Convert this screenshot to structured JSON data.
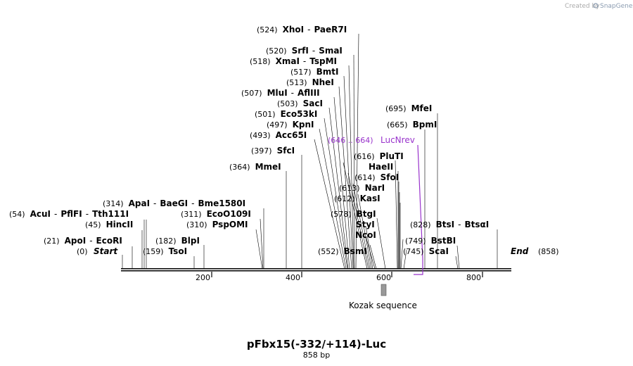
{
  "watermark": "Created by",
  "brand": "SnapGene",
  "title": "pFbx15(-332/+114)-Luc",
  "subtitle": "858 bp",
  "start_label": "(0)",
  "start_text": "Start",
  "end_text": "End",
  "end_label": "(858)",
  "ticks": [
    "200",
    "400",
    "600",
    "800"
  ],
  "feature": {
    "label": "Kozak sequence"
  },
  "primer": {
    "pos": "(646 .. 664)",
    "name": "LucNrev",
    "color": "#9933cc"
  },
  "sites": [
    {
      "pos": "(524)",
      "names": [
        "XhoI",
        "PaeR7I"
      ]
    },
    {
      "pos": "(520)",
      "names": [
        "SrfI",
        "SmaI"
      ]
    },
    {
      "pos": "(518)",
      "names": [
        "XmaI",
        "TspMI"
      ]
    },
    {
      "pos": "(517)",
      "names": [
        "BmtI"
      ]
    },
    {
      "pos": "(513)",
      "names": [
        "NheI"
      ]
    },
    {
      "pos": "(507)",
      "names": [
        "MluI",
        "AflIII"
      ]
    },
    {
      "pos": "(503)",
      "names": [
        "SacI"
      ]
    },
    {
      "pos": "(501)",
      "names": [
        "Eco53kI"
      ]
    },
    {
      "pos": "(497)",
      "names": [
        "KpnI"
      ]
    },
    {
      "pos": "(493)",
      "names": [
        "Acc65I"
      ]
    },
    {
      "pos": "(397)",
      "names": [
        "SfcI"
      ]
    },
    {
      "pos": "(364)",
      "names": [
        "MmeI"
      ]
    },
    {
      "pos": "(314)",
      "names": [
        "ApaI",
        "BaeGI",
        "Bme1580I"
      ]
    },
    {
      "pos": "(311)",
      "names": [
        "EcoO109I"
      ]
    },
    {
      "pos": "(310)",
      "names": [
        "PspOMI"
      ]
    },
    {
      "pos": "(54)",
      "names": [
        "AcuI",
        "PflFI",
        "Tth111I"
      ]
    },
    {
      "pos": "(45)",
      "names": [
        "HincII"
      ]
    },
    {
      "pos": "(21)",
      "names": [
        "ApoI",
        "EcoRI"
      ]
    },
    {
      "pos": "(182)",
      "names": [
        "BlpI"
      ]
    },
    {
      "pos": "(159)",
      "names": [
        "TsoI"
      ]
    },
    {
      "pos": "(695)",
      "names": [
        "MfeI"
      ]
    },
    {
      "pos": "(665)",
      "names": [
        "BpmI"
      ]
    },
    {
      "pos": "(616)",
      "names": [
        "PluTI"
      ]
    },
    {
      "pos": "",
      "names": [
        "HaeII"
      ]
    },
    {
      "pos": "(614)",
      "names": [
        "SfoI"
      ]
    },
    {
      "pos": "(613)",
      "names": [
        "NarI"
      ]
    },
    {
      "pos": "(612)",
      "names": [
        "KasI"
      ]
    },
    {
      "pos": "(578)",
      "names": [
        "BtgI"
      ]
    },
    {
      "pos": "",
      "names": [
        "StyI"
      ]
    },
    {
      "pos": "",
      "names": [
        "NcoI"
      ]
    },
    {
      "pos": "(552)",
      "names": [
        "BsmI"
      ]
    },
    {
      "pos": "(828)",
      "names": [
        "BtsI",
        "BtsαI"
      ]
    },
    {
      "pos": "(749)",
      "names": [
        "BstBI"
      ]
    },
    {
      "pos": "(745)",
      "names": [
        "ScaI"
      ]
    }
  ]
}
